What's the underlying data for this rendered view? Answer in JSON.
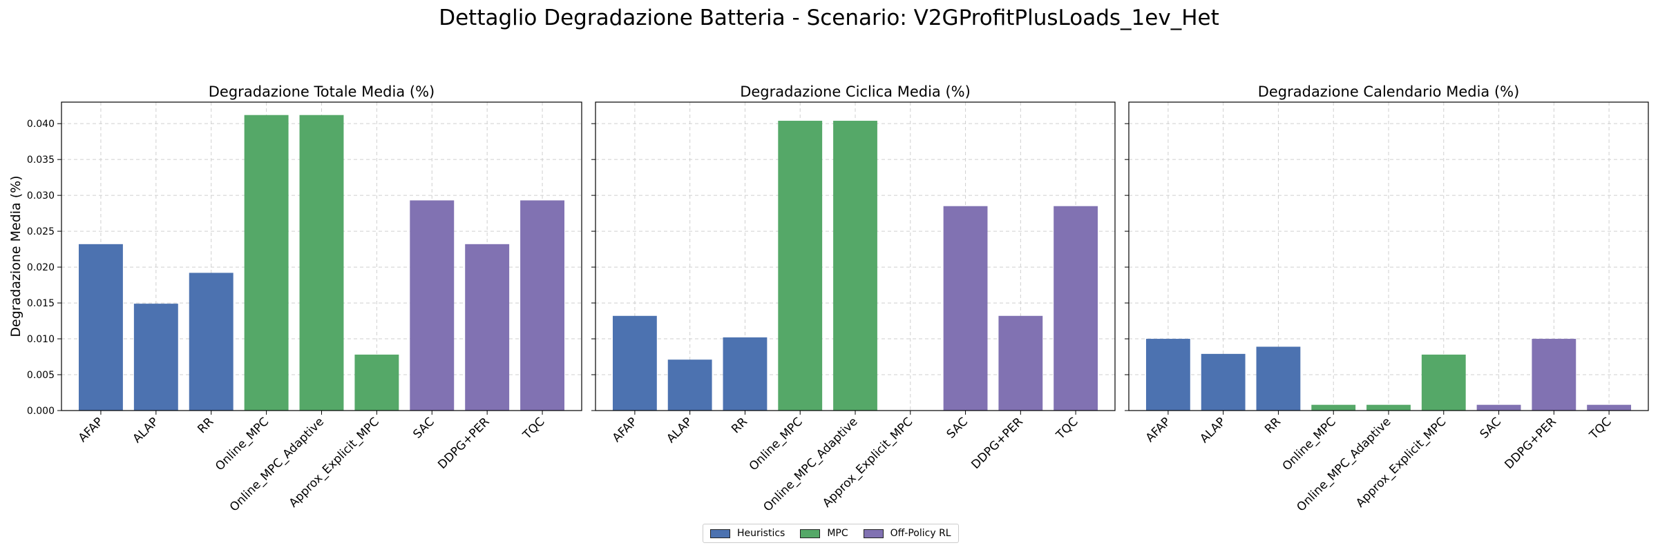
{
  "figure_title": "Dettaglio Degradazione Batteria - Scenario: V2GProfitPlusLoads_1ev_Het",
  "colors": {
    "Heuristics": "#4c72b0",
    "MPC": "#55a868",
    "Off-Policy RL": "#8172b2",
    "grid": "#cfcfcf"
  },
  "legend": [
    {
      "label": "Heuristics",
      "color": "#4c72b0"
    },
    {
      "label": "MPC",
      "color": "#55a868"
    },
    {
      "label": "Off-Policy RL",
      "color": "#8172b2"
    }
  ],
  "chart_data": [
    {
      "type": "bar",
      "title": "Degradazione Totale Media (%)",
      "ylabel": "Degradazione Media (%)",
      "xlabel": "",
      "categories": [
        "AFAP",
        "ALAP",
        "RR",
        "Online_MPC",
        "Online_MPC_Adaptive",
        "Approx_Explicit_MPC",
        "SAC",
        "DDPG+PER",
        "TQC"
      ],
      "groups": [
        "Heuristics",
        "Heuristics",
        "Heuristics",
        "MPC",
        "MPC",
        "MPC",
        "Off-Policy RL",
        "Off-Policy RL",
        "Off-Policy RL"
      ],
      "values": [
        0.0232,
        0.0149,
        0.0192,
        0.0412,
        0.0412,
        0.0078,
        0.0293,
        0.0232,
        0.0293
      ],
      "ylim": [
        0,
        0.043
      ],
      "yticks": [
        "0.000",
        "0.005",
        "0.010",
        "0.015",
        "0.020",
        "0.025",
        "0.030",
        "0.035",
        "0.040"
      ],
      "grid": true
    },
    {
      "type": "bar",
      "title": "Degradazione Ciclica Media (%)",
      "ylabel": "",
      "xlabel": "",
      "categories": [
        "AFAP",
        "ALAP",
        "RR",
        "Online_MPC",
        "Online_MPC_Adaptive",
        "Approx_Explicit_MPC",
        "SAC",
        "DDPG+PER",
        "TQC"
      ],
      "groups": [
        "Heuristics",
        "Heuristics",
        "Heuristics",
        "MPC",
        "MPC",
        "MPC",
        "Off-Policy RL",
        "Off-Policy RL",
        "Off-Policy RL"
      ],
      "values": [
        0.0132,
        0.0071,
        0.0102,
        0.0404,
        0.0404,
        0.0,
        0.0285,
        0.0132,
        0.0285
      ],
      "ylim": [
        0,
        0.043
      ],
      "grid": true
    },
    {
      "type": "bar",
      "title": "Degradazione Calendario Media (%)",
      "ylabel": "",
      "xlabel": "",
      "categories": [
        "AFAP",
        "ALAP",
        "RR",
        "Online_MPC",
        "Online_MPC_Adaptive",
        "Approx_Explicit_MPC",
        "SAC",
        "DDPG+PER",
        "TQC"
      ],
      "groups": [
        "Heuristics",
        "Heuristics",
        "Heuristics",
        "MPC",
        "MPC",
        "MPC",
        "Off-Policy RL",
        "Off-Policy RL",
        "Off-Policy RL"
      ],
      "values": [
        0.01,
        0.0079,
        0.0089,
        0.0008,
        0.0008,
        0.0078,
        0.0008,
        0.01,
        0.0008
      ],
      "ylim": [
        0,
        0.043
      ],
      "grid": true
    }
  ]
}
